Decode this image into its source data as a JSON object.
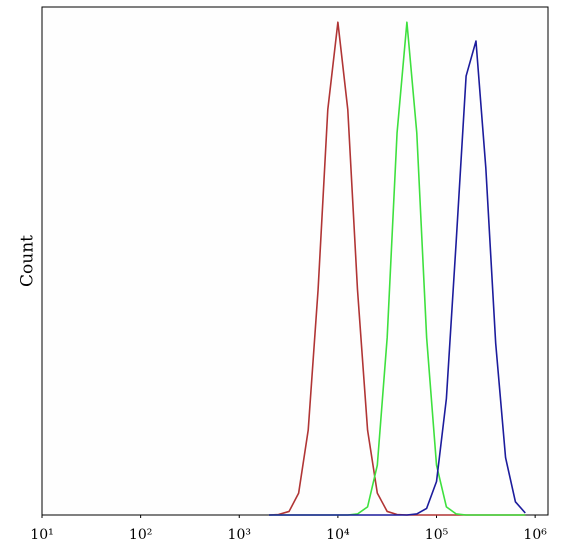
{
  "chart_data": {
    "type": "line",
    "y_label": "Count",
    "x_scale": "log",
    "xlim": [
      10,
      1350000
    ],
    "ylim": [
      0,
      100
    ],
    "xticks": [
      {
        "value": 10,
        "label": "10¹"
      },
      {
        "value": 100,
        "label": "10²"
      },
      {
        "value": 1000,
        "label": "10³"
      },
      {
        "value": 10000,
        "label": "10⁴"
      },
      {
        "value": 100000,
        "label": "10⁵"
      },
      {
        "value": 1000000,
        "label": "10⁶"
      }
    ],
    "x": [
      2000,
      2500,
      3200,
      4000,
      5000,
      6300,
      7900,
      10000,
      12600,
      15800,
      20000,
      25100,
      31600,
      39800,
      50100,
      63100,
      79400,
      100000,
      125900,
      158500,
      199500,
      251200,
      316200,
      398100,
      501200,
      631000,
      794300
    ],
    "series": [
      {
        "color": "#b03535",
        "values": [
          0,
          0.1,
          0.7,
          4.3,
          16.7,
          44.4,
          79.8,
          97,
          79.8,
          44.4,
          16.7,
          4.3,
          0.7,
          0.1,
          0,
          0,
          0,
          0,
          0,
          0,
          0,
          0,
          0,
          0,
          0,
          0,
          0
        ]
      },
      {
        "color": "#3ee03e",
        "values": [
          0,
          0,
          0,
          0,
          0,
          0,
          0,
          0,
          0,
          0.2,
          1.6,
          9.8,
          34.9,
          75.2,
          97,
          75.2,
          34.9,
          9.8,
          1.6,
          0.2,
          0,
          0,
          0,
          0,
          0,
          0,
          0
        ]
      },
      {
        "color": "#1c1c9c",
        "values": [
          0,
          0,
          0,
          0,
          0,
          0,
          0,
          0,
          0,
          0,
          0,
          0,
          0,
          0,
          0,
          0.2,
          1.3,
          6.6,
          22.9,
          54.0,
          86.4,
          93.3,
          68.3,
          33.8,
          11.3,
          2.6,
          0.4
        ]
      }
    ]
  }
}
